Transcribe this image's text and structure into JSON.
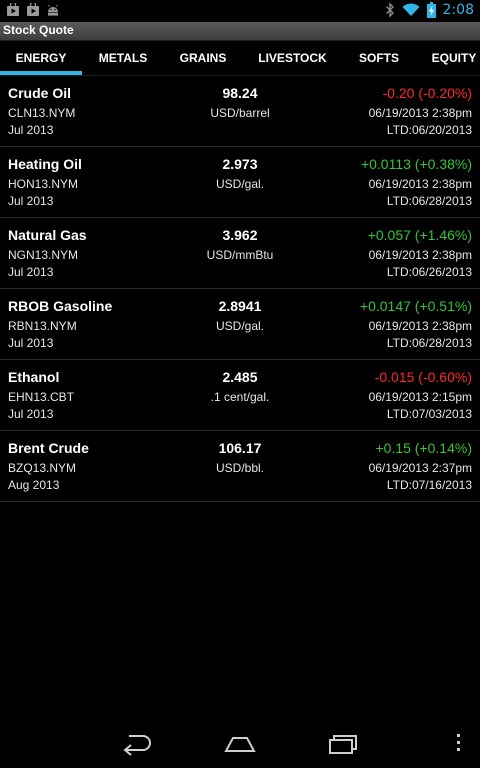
{
  "status_bar": {
    "time": "2:08",
    "notification_icons": [
      "play-store-icon",
      "play-store-icon",
      "android-icon"
    ],
    "system_icons": [
      "bluetooth-icon",
      "wifi-icon",
      "battery-charging-icon"
    ]
  },
  "app": {
    "title": "Stock Quote"
  },
  "tabs": [
    {
      "label": "ENERGY",
      "selected": true
    },
    {
      "label": "METALS",
      "selected": false
    },
    {
      "label": "GRAINS",
      "selected": false
    },
    {
      "label": "LIVESTOCK",
      "selected": false
    },
    {
      "label": "SOFTS",
      "selected": false
    },
    {
      "label": "EQUITY",
      "selected": false
    }
  ],
  "quotes": [
    {
      "name": "Crude Oil",
      "symbol": "CLN13.NYM",
      "month": "Jul 2013",
      "price": "98.24",
      "unit": "USD/barrel",
      "change": "-0.20 (-0.20%)",
      "direction": "down",
      "time": "06/19/2013 2:38pm",
      "ltd": "LTD:06/20/2013"
    },
    {
      "name": "Heating Oil",
      "symbol": "HON13.NYM",
      "month": "Jul 2013",
      "price": "2.973",
      "unit": "USD/gal.",
      "change": "+0.0113 (+0.38%)",
      "direction": "up",
      "time": "06/19/2013 2:38pm",
      "ltd": "LTD:06/28/2013"
    },
    {
      "name": "Natural Gas",
      "symbol": "NGN13.NYM",
      "month": "Jul 2013",
      "price": "3.962",
      "unit": "USD/mmBtu",
      "change": "+0.057 (+1.46%)",
      "direction": "up",
      "time": "06/19/2013 2:38pm",
      "ltd": "LTD:06/26/2013"
    },
    {
      "name": "RBOB Gasoline",
      "symbol": "RBN13.NYM",
      "month": "Jul 2013",
      "price": "2.8941",
      "unit": "USD/gal.",
      "change": "+0.0147 (+0.51%)",
      "direction": "up",
      "time": "06/19/2013 2:38pm",
      "ltd": "LTD:06/28/2013"
    },
    {
      "name": "Ethanol",
      "symbol": "EHN13.CBT",
      "month": "Jul 2013",
      "price": "2.485",
      "unit": ".1 cent/gal.",
      "change": "-0.015 (-0.60%)",
      "direction": "down",
      "time": "06/19/2013 2:15pm",
      "ltd": "LTD:07/03/2013"
    },
    {
      "name": "Brent Crude",
      "symbol": "BZQ13.NYM",
      "month": "Aug 2013",
      "price": "106.17",
      "unit": "USD/bbl.",
      "change": "+0.15 (+0.14%)",
      "direction": "up",
      "time": "06/19/2013 2:37pm",
      "ltd": "LTD:07/16/2013"
    }
  ],
  "nav_bar": {
    "buttons": [
      "back-icon",
      "home-icon",
      "recent-apps-icon",
      "overflow-menu-icon"
    ]
  },
  "colors": {
    "accent": "#33b5e5",
    "negative": "#ff2a2a",
    "positive": "#35c535"
  }
}
